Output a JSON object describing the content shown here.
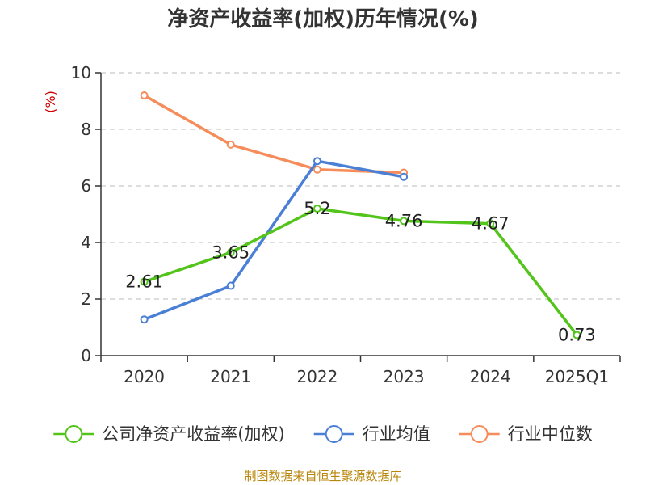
{
  "chart_data": {
    "type": "line",
    "title": "净资产收益率(加权)历年情况(%)",
    "ylabel": "(%)",
    "categories": [
      "2020",
      "2021",
      "2022",
      "2023",
      "2024",
      "2025Q1"
    ],
    "ylim": [
      0,
      10
    ],
    "yticks": [
      "0",
      "2",
      "4",
      "6",
      "8",
      "10"
    ],
    "grid": true,
    "legend_position": "bottom",
    "series": [
      {
        "name": "公司净资产收益率(加权)",
        "color": "#52c41a",
        "values": [
          2.61,
          3.65,
          5.2,
          4.76,
          4.67,
          0.73
        ],
        "labels": [
          "2.61",
          "3.65",
          "5.2",
          "4.76",
          "4.67",
          "0.73"
        ]
      },
      {
        "name": "行业均值",
        "color": "#4a7fd6",
        "values": [
          1.28,
          2.47,
          6.88,
          6.32,
          null,
          null
        ]
      },
      {
        "name": "行业中位数",
        "color": "#f58c5a",
        "values": [
          9.2,
          7.46,
          6.58,
          6.47,
          null,
          null
        ]
      }
    ],
    "source": "制图数据来自恒生聚源数据库"
  }
}
